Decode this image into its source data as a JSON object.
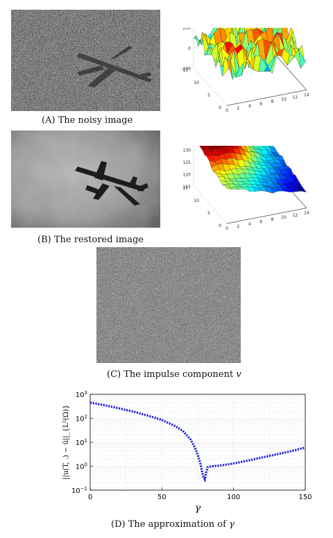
{
  "panels": {
    "a": {
      "label": "(A)",
      "text": "The noisy image",
      "surface_ticks_z": [
        "400",
        "200",
        "0",
        "-200"
      ],
      "surface_ticks_y": [
        "0",
        "5",
        "10",
        "15"
      ],
      "surface_ticks_x": [
        "0",
        "2",
        "4",
        "6",
        "8",
        "10",
        "12",
        "14"
      ]
    },
    "b": {
      "label": "(B)",
      "text": "The restored image",
      "surface_ticks_z": [
        "140",
        "135",
        "130",
        "125",
        "120",
        "115"
      ],
      "surface_ticks_y": [
        "0",
        "5",
        "10",
        "15"
      ],
      "surface_ticks_x": [
        "0",
        "2",
        "4",
        "6",
        "8",
        "10",
        "12",
        "14"
      ]
    },
    "c": {
      "label": "(C)",
      "text": "The impulse component",
      "symbol": "v"
    },
    "d": {
      "label": "(D)",
      "text": "The approximation of",
      "symbol": "γ"
    }
  },
  "chart_data": {
    "type": "line",
    "title": "",
    "xlabel": "γ",
    "ylabel": "||u(T, .) − ū||_{L²(Ω)}",
    "xlim": [
      0,
      150
    ],
    "ylim": [
      0.1,
      1000
    ],
    "yscale": "log",
    "grid": true,
    "xticks": [
      "0",
      "50",
      "100",
      "150"
    ],
    "yticks": [
      "10⁻¹",
      "10⁰",
      "10¹",
      "10²",
      "10³"
    ],
    "series": [
      {
        "style": "dotted",
        "color": "#1f1fdc",
        "x": [
          0,
          10,
          20,
          30,
          40,
          50,
          60,
          65,
          70,
          73,
          75,
          77,
          78,
          79,
          80,
          81,
          82,
          85,
          90,
          100,
          110,
          120,
          130,
          140,
          150
        ],
        "y": [
          450,
          350,
          260,
          190,
          130,
          85,
          45,
          28,
          13,
          6,
          3,
          1.2,
          0.6,
          0.35,
          0.28,
          0.6,
          0.9,
          1.0,
          1.05,
          1.3,
          1.7,
          2.3,
          3.1,
          4.2,
          6.0
        ]
      }
    ]
  },
  "colors": {
    "curve": "#1f1fdc"
  }
}
